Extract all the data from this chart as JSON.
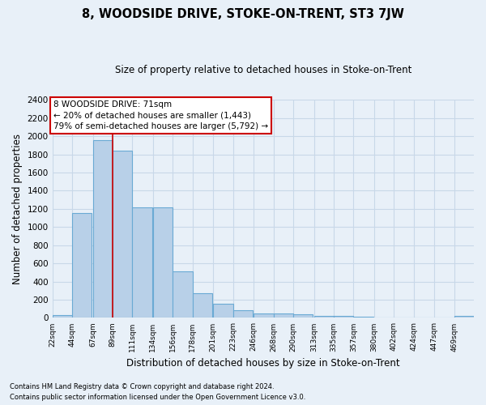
{
  "title": "8, WOODSIDE DRIVE, STOKE-ON-TRENT, ST3 7JW",
  "subtitle": "Size of property relative to detached houses in Stoke-on-Trent",
  "xlabel": "Distribution of detached houses by size in Stoke-on-Trent",
  "ylabel": "Number of detached properties",
  "bin_labels": [
    "22sqm",
    "44sqm",
    "67sqm",
    "89sqm",
    "111sqm",
    "134sqm",
    "156sqm",
    "178sqm",
    "201sqm",
    "223sqm",
    "246sqm",
    "268sqm",
    "290sqm",
    "313sqm",
    "335sqm",
    "357sqm",
    "380sqm",
    "402sqm",
    "424sqm",
    "447sqm",
    "469sqm"
  ],
  "bar_values": [
    30,
    1150,
    1960,
    1840,
    1220,
    1220,
    510,
    275,
    155,
    80,
    50,
    45,
    40,
    20,
    20,
    15,
    5,
    0,
    0,
    0,
    20
  ],
  "bar_color": "#b8d0e8",
  "bar_edge_color": "#6aaad4",
  "annotation_text_line1": "8 WOODSIDE DRIVE: 71sqm",
  "annotation_text_line2": "← 20% of detached houses are smaller (1,443)",
  "annotation_text_line3": "79% of semi-detached houses are larger (5,792) →",
  "ylim": [
    0,
    2400
  ],
  "yticks": [
    0,
    200,
    400,
    600,
    800,
    1000,
    1200,
    1400,
    1600,
    1800,
    2000,
    2200,
    2400
  ],
  "footnote1": "Contains HM Land Registry data © Crown copyright and database right 2024.",
  "footnote2": "Contains public sector information licensed under the Open Government Licence v3.0.",
  "background_color": "#e8f0f8",
  "plot_bg_color": "#e8f0f8",
  "grid_color": "#c8d8e8",
  "annotation_box_color": "#ffffff",
  "annotation_box_edge": "#cc0000",
  "bin_width": 22,
  "red_line_color": "#cc0000",
  "red_line_x": 78
}
